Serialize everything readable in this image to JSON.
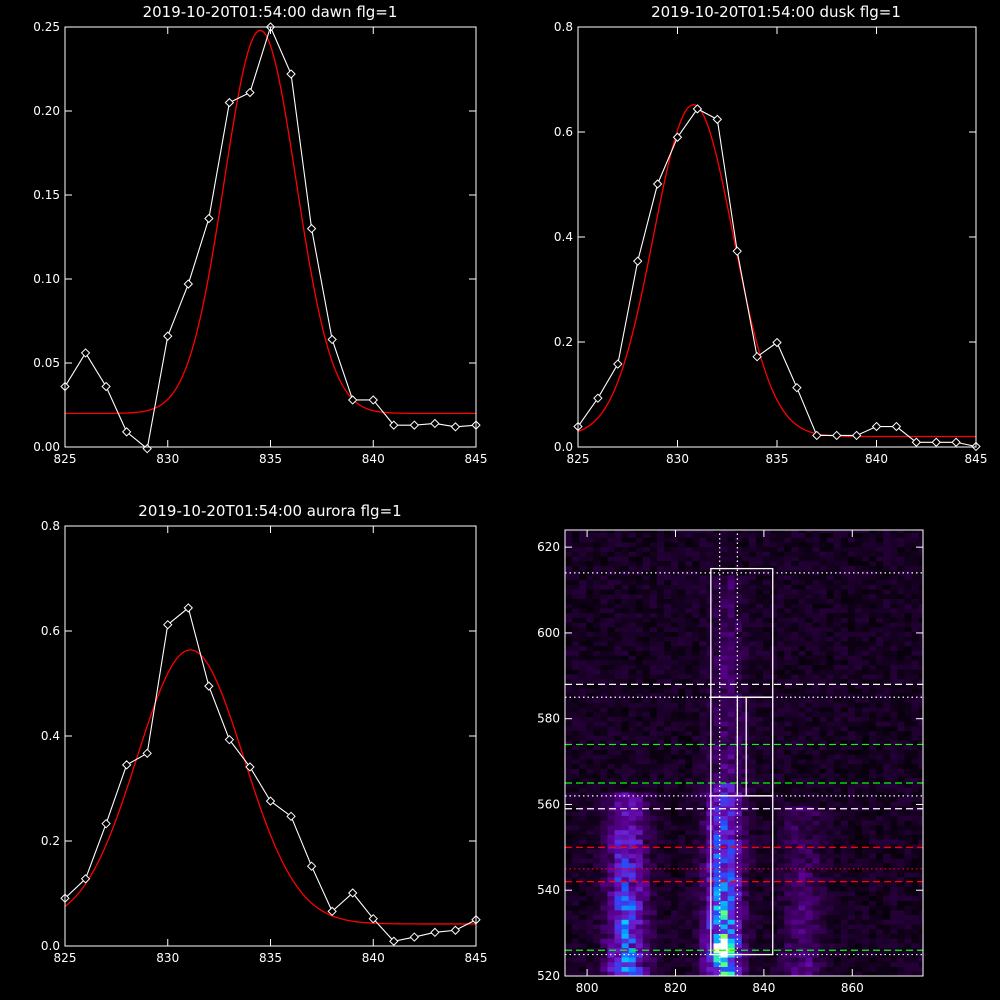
{
  "chart_data": [
    {
      "type": "line",
      "title": "2019-10-20T01:54:00 dawn flg=1",
      "xlim": [
        825,
        845
      ],
      "ylim": [
        0,
        0.25
      ],
      "xticks": [
        825,
        830,
        835,
        840,
        845
      ],
      "xtick_labels": [
        "825",
        "830",
        "835",
        "840",
        "845"
      ],
      "yticks": [
        0,
        0.05,
        0.1,
        0.15,
        0.2,
        0.25
      ],
      "ytick_labels": [
        "0.00",
        "0.05",
        "0.10",
        "0.15",
        "0.20",
        "0.25"
      ],
      "colors": {
        "data": "#ffffff",
        "fit": "#ff0000"
      },
      "series": [
        {
          "role": "data",
          "marker": "diamond",
          "x": [
            825,
            826,
            827,
            828,
            829,
            830,
            831,
            832,
            833,
            834,
            835,
            836,
            837,
            838,
            839,
            840,
            841,
            842,
            843,
            844,
            845
          ],
          "y": [
            0.036,
            0.056,
            0.036,
            0.009,
            -0.001,
            0.066,
            0.097,
            0.136,
            0.205,
            0.211,
            0.25,
            0.222,
            0.13,
            0.064,
            0.028,
            0.028,
            0.013,
            0.013,
            0.014,
            0.012,
            0.013
          ]
        },
        {
          "role": "fit",
          "gaussian": {
            "peak": 0.228,
            "center": 834.5,
            "sigma": 1.75,
            "offset": 0.02
          }
        }
      ]
    },
    {
      "type": "line",
      "title": "2019-10-20T01:54:00 dusk flg=1",
      "xlim": [
        825,
        845
      ],
      "ylim": [
        0,
        0.8
      ],
      "xticks": [
        825,
        830,
        835,
        840,
        845
      ],
      "xtick_labels": [
        "825",
        "830",
        "835",
        "840",
        "845"
      ],
      "yticks": [
        0,
        0.2,
        0.4,
        0.6,
        0.8
      ],
      "ytick_labels": [
        "0.0",
        "0.2",
        "0.4",
        "0.6",
        "0.8"
      ],
      "colors": {
        "data": "#ffffff",
        "fit": "#ff0000"
      },
      "series": [
        {
          "role": "data",
          "marker": "diamond",
          "x": [
            825,
            826,
            827,
            828,
            829,
            830,
            831,
            832,
            833,
            834,
            835,
            836,
            837,
            838,
            839,
            840,
            841,
            842,
            843,
            844,
            845
          ],
          "y": [
            0.039,
            0.093,
            0.158,
            0.354,
            0.501,
            0.59,
            0.644,
            0.624,
            0.373,
            0.172,
            0.199,
            0.113,
            0.022,
            0.022,
            0.022,
            0.039,
            0.039,
            0.009,
            0.009,
            0.009,
            0.001
          ]
        },
        {
          "role": "fit",
          "gaussian": {
            "peak": 0.632,
            "center": 830.8,
            "sigma": 2.0,
            "offset": 0.02
          }
        }
      ]
    },
    {
      "type": "line",
      "title": "2019-10-20T01:54:00 aurora flg=1",
      "xlim": [
        825,
        845
      ],
      "ylim": [
        0,
        0.8
      ],
      "xticks": [
        825,
        830,
        835,
        840,
        845
      ],
      "xtick_labels": [
        "825",
        "830",
        "835",
        "840",
        "845"
      ],
      "yticks": [
        0,
        0.2,
        0.4,
        0.6,
        0.8
      ],
      "ytick_labels": [
        "0.0",
        "0.2",
        "0.4",
        "0.6",
        "0.8"
      ],
      "colors": {
        "data": "#ffffff",
        "fit": "#ff0000"
      },
      "series": [
        {
          "role": "data",
          "marker": "diamond",
          "x": [
            825,
            826,
            827,
            828,
            829,
            830,
            831,
            832,
            833,
            834,
            835,
            836,
            837,
            838,
            839,
            840,
            841,
            842,
            843,
            844,
            845
          ],
          "y": [
            0.091,
            0.128,
            0.233,
            0.345,
            0.367,
            0.612,
            0.644,
            0.495,
            0.393,
            0.341,
            0.276,
            0.247,
            0.152,
            0.066,
            0.101,
            0.052,
            0.009,
            0.017,
            0.026,
            0.03,
            0.05
          ]
        },
        {
          "role": "fit",
          "gaussian": {
            "peak": 0.522,
            "center": 831.1,
            "sigma": 2.6,
            "offset": 0.042
          }
        }
      ]
    },
    {
      "type": "heatmap",
      "xlim": [
        795,
        876
      ],
      "ylim": [
        520,
        624
      ],
      "xticks": [
        800,
        820,
        840,
        860
      ],
      "xtick_labels": [
        "800",
        "820",
        "840",
        "860"
      ],
      "yticks": [
        520,
        540,
        560,
        580,
        600,
        620
      ],
      "ytick_labels": [
        "520",
        "540",
        "560",
        "580",
        "600",
        "620"
      ],
      "colorscale": [
        "#000000",
        "#2a0040",
        "#5a0090",
        "#6a20d0",
        "#2050ff",
        "#00d0ff",
        "#40ff90",
        "#f0ff20",
        "#ffffff"
      ],
      "background_level": 0.06,
      "emission_columns": [
        {
          "center": 809,
          "width": 3.2,
          "intensity": 0.42,
          "y_from": 520,
          "y_to": 563
        },
        {
          "center": 831,
          "width": 2.8,
          "intensity": 0.55,
          "y_from": 520,
          "y_to": 565
        },
        {
          "center": 832,
          "width": 3.0,
          "intensity": 0.14,
          "y_from": 565,
          "y_to": 614
        },
        {
          "center": 849,
          "width": 3.0,
          "intensity": 0.16,
          "y_from": 520,
          "y_to": 560
        }
      ],
      "hotspot": {
        "x": 831,
        "y": 527,
        "intensity": 1.0
      },
      "horizontal_lines": [
        {
          "y": 614,
          "color": "#ffffff",
          "style": "dotted"
        },
        {
          "y": 588,
          "color": "#ffffff",
          "style": "dashed"
        },
        {
          "y": 585,
          "color": "#ffffff",
          "style": "dotted"
        },
        {
          "y": 574,
          "color": "#00ff00",
          "style": "dashed"
        },
        {
          "y": 565,
          "color": "#00ff00",
          "style": "dashed"
        },
        {
          "y": 562,
          "color": "#ffffff",
          "style": "dotted"
        },
        {
          "y": 559,
          "color": "#ffffff",
          "style": "dashed"
        },
        {
          "y": 550,
          "color": "#ff0000",
          "style": "dashed"
        },
        {
          "y": 545,
          "color": "#ff0000",
          "style": "dotted"
        },
        {
          "y": 542,
          "color": "#ff0000",
          "style": "dashed"
        },
        {
          "y": 526,
          "color": "#00ff00",
          "style": "dashed"
        },
        {
          "y": 525,
          "color": "#ffffff",
          "style": "dotted"
        }
      ],
      "vertical_lines": [
        {
          "x": 830,
          "color": "#ffffff",
          "style": "dotted"
        },
        {
          "x": 834,
          "color": "#ffffff",
          "style": "dotted"
        }
      ],
      "boxes": [
        {
          "x": [
            828,
            842
          ],
          "y": [
            585,
            615
          ],
          "color": "#ffffff"
        },
        {
          "x": [
            828,
            834
          ],
          "y": [
            562,
            585
          ],
          "color": "#ffffff"
        },
        {
          "x": [
            836,
            842
          ],
          "y": [
            562,
            585
          ],
          "color": "#ffffff"
        },
        {
          "x": [
            828,
            842
          ],
          "y": [
            525,
            562
          ],
          "color": "#ffffff"
        }
      ]
    }
  ]
}
